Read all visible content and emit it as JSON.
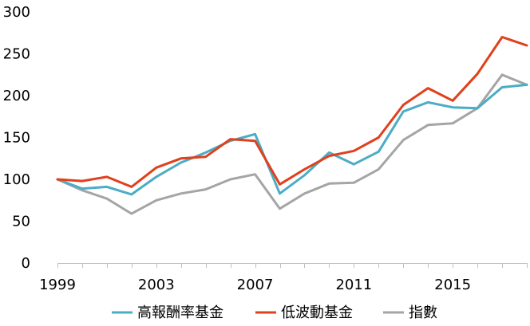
{
  "chart_data": {
    "type": "line",
    "title": "",
    "xlabel": "",
    "ylabel": "",
    "x": [
      1999,
      2000,
      2001,
      2002,
      2003,
      2004,
      2005,
      2006,
      2007,
      2008,
      2009,
      2010,
      2011,
      2012,
      2013,
      2014,
      2015,
      2016,
      2017,
      2018
    ],
    "xticks": [
      "1999",
      "2003",
      "2007",
      "2011",
      "2015"
    ],
    "xlim": [
      1999,
      2018
    ],
    "ylim": [
      0,
      300
    ],
    "yticks": [
      "0",
      "50",
      "100",
      "150",
      "200",
      "250",
      "300"
    ],
    "grid": false,
    "legend_position": "bottom",
    "series": [
      {
        "name": "高報酬率基金",
        "color": "#4BACC6",
        "values": [
          100,
          89,
          91,
          82,
          103,
          120,
          132,
          146,
          154,
          83,
          105,
          132,
          118,
          133,
          181,
          192,
          186,
          185,
          210,
          213
        ]
      },
      {
        "name": "低波動基金",
        "color": "#E0401B",
        "values": [
          100,
          98,
          103,
          91,
          114,
          125,
          127,
          148,
          146,
          94,
          112,
          128,
          134,
          150,
          189,
          209,
          194,
          226,
          270,
          260
        ]
      },
      {
        "name": "指數",
        "color": "#A5A5A5",
        "values": [
          100,
          87,
          77,
          59,
          75,
          83,
          88,
          100,
          106,
          65,
          83,
          95,
          96,
          112,
          147,
          165,
          167,
          185,
          225,
          213
        ]
      }
    ]
  }
}
